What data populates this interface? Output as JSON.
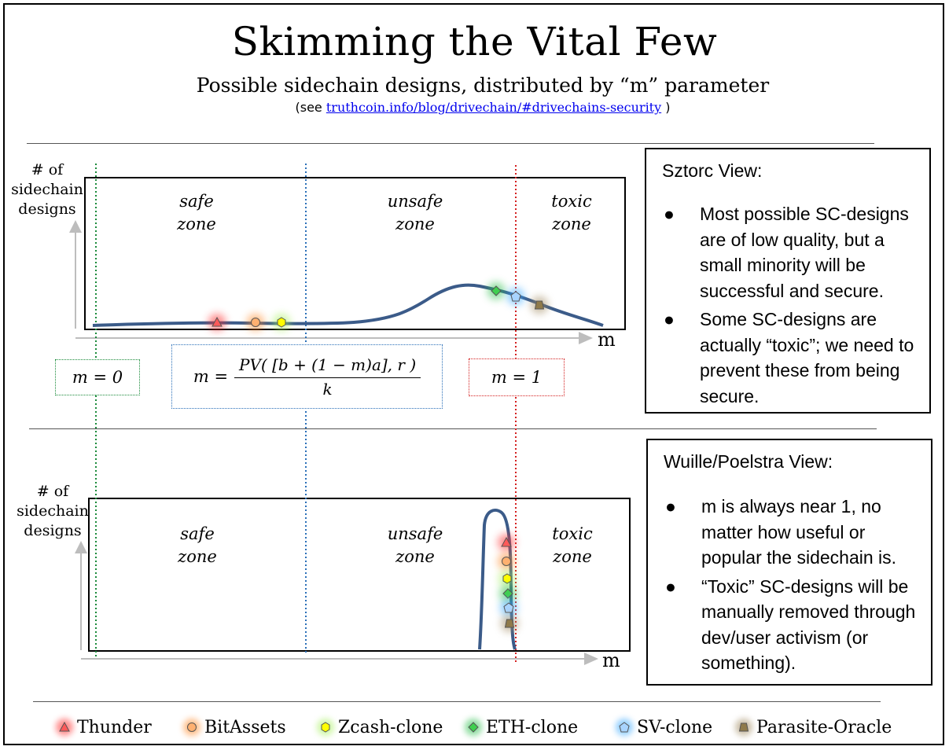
{
  "header": {
    "title": "Skimming the Vital Few",
    "subtitle": "Possible sidechain designs, distributed by “m” parameter",
    "see_prefix": "(see ",
    "see_link": "truthcoin.info/blog/drivechain/#drivechains-security",
    "see_suffix": " )"
  },
  "colors": {
    "curve": "#3b5b89",
    "safe_line": "#1a8a3a",
    "unsafe_line": "#2a6fb8",
    "toxic_line": "#d42020",
    "axis": "#bdbdbd"
  },
  "top_diagram": {
    "ylabel_lines": [
      "# of",
      "sidechain",
      "designs"
    ],
    "xlabel": "m",
    "zones": [
      {
        "line1": "safe",
        "line2": "zone"
      },
      {
        "line1": "unsafe",
        "line2": "zone"
      },
      {
        "line1": "toxic",
        "line2": "zone"
      }
    ],
    "m0_label": "m = 0",
    "m1_label": "m = 1",
    "formula": {
      "lhs": "m =",
      "numerator": "PV( [b + (1 − m)a], r )",
      "denominator": "k"
    }
  },
  "bottom_diagram": {
    "ylabel_lines": [
      "# of",
      "sidechain",
      "designs"
    ],
    "xlabel": "m",
    "zones": [
      {
        "line1": "safe",
        "line2": "zone"
      },
      {
        "line1": "unsafe",
        "line2": "zone"
      },
      {
        "line1": "toxic",
        "line2": "zone"
      }
    ]
  },
  "sztorc_view": {
    "title": "Sztorc View:",
    "bullets": [
      "Most possible SC-designs are of low quality, but a small minority will be successful and secure.",
      "Some SC-designs are actually “toxic”; we need to prevent these from being secure."
    ]
  },
  "wuille_view": {
    "title": "Wuille/Poelstra View:",
    "bullets": [
      "m is always near 1, no matter how useful or popular the sidechain is.",
      "“Toxic” SC-designs will be manually removed through dev/user activism (or something)."
    ]
  },
  "bullet_glyph": "●",
  "legend": [
    {
      "label": "Thunder",
      "icon": "triangle-icon",
      "color": "#ff5a5a",
      "glow": "#ff3030"
    },
    {
      "label": "BitAssets",
      "icon": "circle-icon",
      "color": "#ffb070",
      "glow": "#ff8a2a"
    },
    {
      "label": "Zcash-clone",
      "icon": "hexagon-icon",
      "color": "#ffff00",
      "glow": "#a8f060"
    },
    {
      "label": "ETH-clone",
      "icon": "diamond-icon",
      "color": "#3fcf4f",
      "glow": "#30c050"
    },
    {
      "label": "SV-clone",
      "icon": "pentagon-icon",
      "color": "#a8d4ff",
      "glow": "#38a8ff"
    },
    {
      "label": "Parasite-Oracle",
      "icon": "trapezoid-icon",
      "color": "#8f7a4a",
      "glow": "#a08a60"
    }
  ]
}
